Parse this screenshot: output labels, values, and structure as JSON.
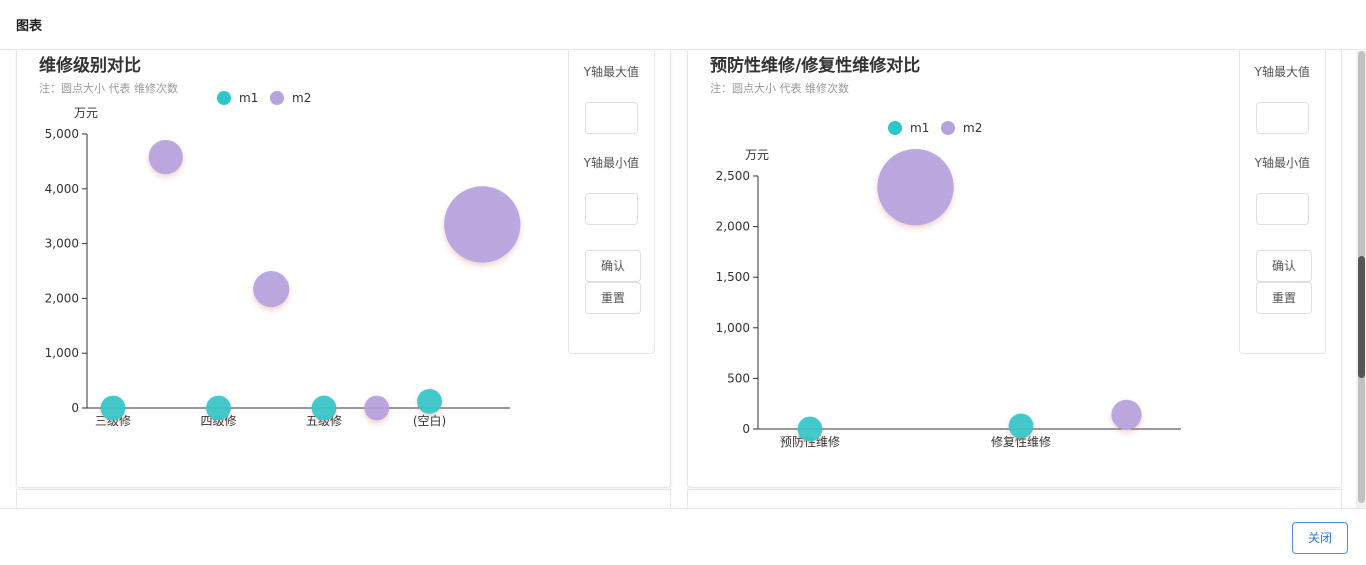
{
  "dialog": {
    "title": "图表",
    "close_label": "关闭"
  },
  "chart_data": [
    {
      "type": "scatter",
      "title": "维修级别对比",
      "note": "注：圆点大小 代表 维修次数",
      "ylabel": "万元",
      "ylim": [
        0,
        5000
      ],
      "yticks": [
        0,
        1000,
        2000,
        3000,
        4000,
        5000
      ],
      "categories": [
        "三级修",
        "四级修",
        "五级修",
        "(空白)"
      ],
      "legend": {
        "position": "top-center"
      },
      "series": [
        {
          "name": "m1",
          "color": "#2ec7c9",
          "points": [
            {
              "x": 0,
              "y": 0,
              "size": 2
            },
            {
              "x": 1,
              "y": 0,
              "size": 2
            },
            {
              "x": 2,
              "y": 0,
              "size": 2
            },
            {
              "x": 3,
              "y": 120,
              "size": 2
            }
          ]
        },
        {
          "name": "m2",
          "color": "#b6a2de",
          "points": [
            {
              "x": 0.5,
              "y": 4580,
              "size": 6
            },
            {
              "x": 1.5,
              "y": 2170,
              "size": 7
            },
            {
              "x": 2.5,
              "y": 0,
              "size": 2
            },
            {
              "x": 3.5,
              "y": 3350,
              "size": 50
            }
          ]
        }
      ]
    },
    {
      "type": "scatter",
      "title": "预防性维修/修复性维修对比",
      "note": "注：圆点大小 代表 维修次数",
      "ylabel": "万元",
      "ylim": [
        0,
        2500
      ],
      "yticks": [
        0,
        500,
        1000,
        1500,
        2000,
        2500
      ],
      "categories": [
        "预防性维修",
        "修复性维修"
      ],
      "legend": {
        "position": "top-center"
      },
      "series": [
        {
          "name": "m1",
          "color": "#2ec7c9",
          "points": [
            {
              "x": 0,
              "y": 0,
              "size": 2
            },
            {
              "x": 1,
              "y": 30,
              "size": 2
            }
          ]
        },
        {
          "name": "m2",
          "color": "#b6a2de",
          "points": [
            {
              "x": 0.5,
              "y": 2390,
              "size": 50
            },
            {
              "x": 1.5,
              "y": 140,
              "size": 4
            }
          ]
        }
      ]
    }
  ],
  "panels": [
    {
      "y_max_label": "Y轴最大值",
      "y_min_label": "Y轴最小值",
      "y_max_value": "",
      "y_min_value": "",
      "confirm_label": "确认",
      "reset_label": "重置"
    },
    {
      "y_max_label": "Y轴最大值",
      "y_min_label": "Y轴最小值",
      "y_max_value": "",
      "y_min_value": "",
      "confirm_label": "确认",
      "reset_label": "重置"
    }
  ]
}
